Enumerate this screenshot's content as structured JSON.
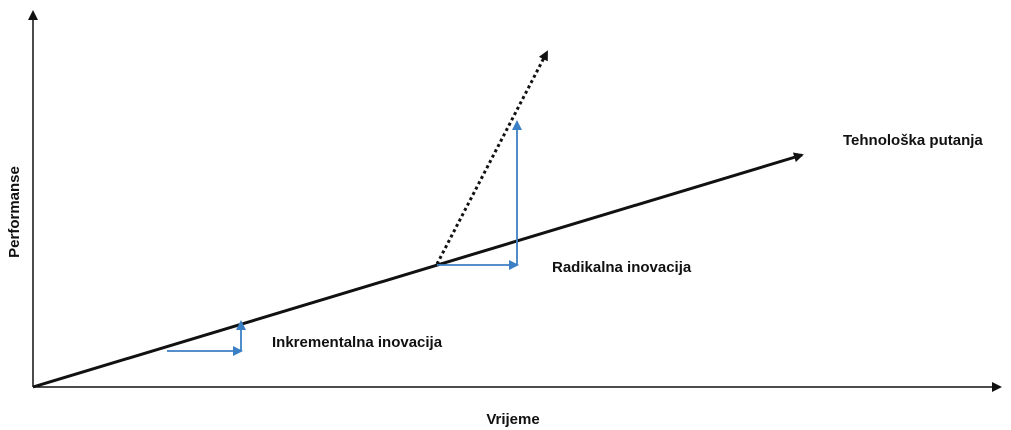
{
  "axes": {
    "x_label": "Vrijeme",
    "y_label": "Performanse"
  },
  "labels": {
    "trajectory": "Tehnološka putanja",
    "radical": "Radikalna inovacija",
    "incremental": "Inkrementalna inovacija"
  }
}
